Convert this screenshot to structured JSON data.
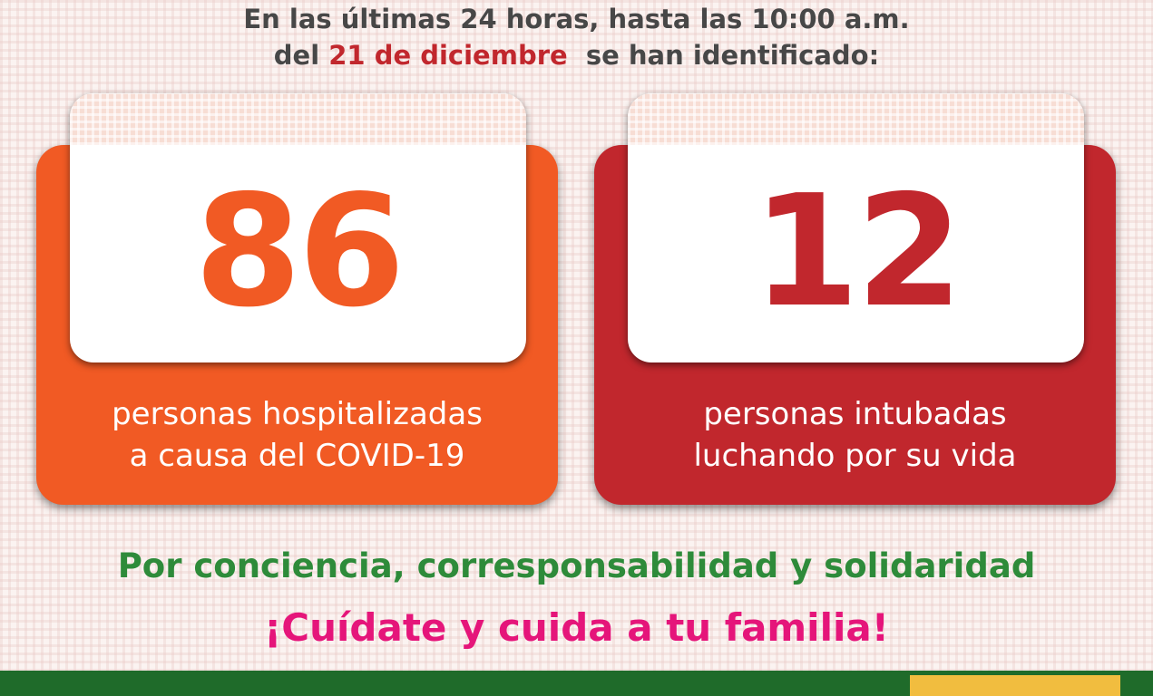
{
  "header": {
    "line1": "En las últimas 24 horas, hasta las 10:00 a.m.",
    "line2_prefix": "del ",
    "line2_date": "21 de diciembre",
    "line2_suffix": "  se han identificado:"
  },
  "cards": [
    {
      "value": "86",
      "caption_line1": "personas hospitalizadas",
      "caption_line2": "a causa del COVID-19",
      "color": "#f15a24"
    },
    {
      "value": "12",
      "caption_line1": "personas intubadas",
      "caption_line2": "luchando por su vida",
      "color": "#c1272d"
    }
  ],
  "slogan": {
    "line1": "Por conciencia, corresponsabilidad y solidaridad",
    "line2": "¡Cuídate y cuida a tu familia!",
    "line1_color": "#2e8b3a",
    "line2_color": "#e5157a"
  }
}
